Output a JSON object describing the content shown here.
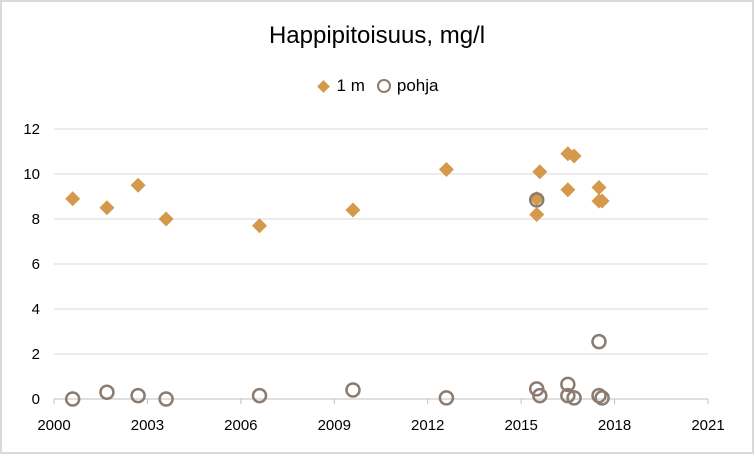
{
  "chart_data": {
    "type": "scatter",
    "title": "Happipitoisuus, mg/l",
    "xlabel": "",
    "ylabel": "",
    "xlim": [
      2000,
      2021
    ],
    "ylim": [
      0,
      12
    ],
    "xticks": [
      "2000",
      "2003",
      "2006",
      "2009",
      "2012",
      "2015",
      "2018",
      "2021"
    ],
    "yticks": [
      "0",
      "2",
      "4",
      "6",
      "8",
      "10",
      "12"
    ],
    "grid": "horizontal",
    "legend_position": "top",
    "series": [
      {
        "name": "1 m",
        "marker": "diamond",
        "color": "#d4994a",
        "points": [
          {
            "x": 2000.6,
            "y": 8.9
          },
          {
            "x": 2001.7,
            "y": 8.5
          },
          {
            "x": 2002.7,
            "y": 9.5
          },
          {
            "x": 2003.6,
            "y": 8.0
          },
          {
            "x": 2006.6,
            "y": 7.7
          },
          {
            "x": 2009.6,
            "y": 8.4
          },
          {
            "x": 2012.6,
            "y": 10.2
          },
          {
            "x": 2015.5,
            "y": 8.9
          },
          {
            "x": 2015.5,
            "y": 8.2
          },
          {
            "x": 2015.6,
            "y": 10.1
          },
          {
            "x": 2016.5,
            "y": 10.9
          },
          {
            "x": 2016.5,
            "y": 9.3
          },
          {
            "x": 2016.7,
            "y": 10.8
          },
          {
            "x": 2017.5,
            "y": 9.4
          },
          {
            "x": 2017.5,
            "y": 8.8
          },
          {
            "x": 2017.6,
            "y": 8.8
          }
        ]
      },
      {
        "name": "pohja",
        "marker": "circle",
        "color": "#8c7b70",
        "points": [
          {
            "x": 2000.6,
            "y": 0.0
          },
          {
            "x": 2001.7,
            "y": 0.3
          },
          {
            "x": 2002.7,
            "y": 0.15
          },
          {
            "x": 2003.6,
            "y": 0.0
          },
          {
            "x": 2006.6,
            "y": 0.15
          },
          {
            "x": 2009.6,
            "y": 0.4
          },
          {
            "x": 2012.6,
            "y": 0.05
          },
          {
            "x": 2015.5,
            "y": 8.85
          },
          {
            "x": 2015.5,
            "y": 0.45
          },
          {
            "x": 2015.6,
            "y": 0.15
          },
          {
            "x": 2016.5,
            "y": 0.65
          },
          {
            "x": 2016.5,
            "y": 0.15
          },
          {
            "x": 2016.7,
            "y": 0.05
          },
          {
            "x": 2017.5,
            "y": 2.55
          },
          {
            "x": 2017.5,
            "y": 0.15
          },
          {
            "x": 2017.6,
            "y": 0.05
          }
        ]
      }
    ]
  }
}
